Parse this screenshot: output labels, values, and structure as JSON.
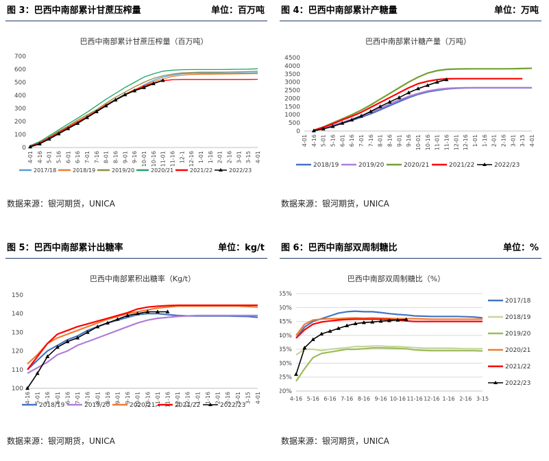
{
  "panels": [
    {
      "header": {
        "title": "图 3：巴西中南部累计甘蔗压榨量",
        "unit": "单位：百万吨"
      },
      "source": "数据来源：银河期货，UNICA"
    },
    {
      "header": {
        "title": "图 4：巴西中南部累计产糖量",
        "unit": "单位：万吨"
      },
      "source": "数据来源：银河期货，UNICA"
    },
    {
      "header": {
        "title": "图 5：巴西中南部累计出糖率",
        "unit": "单位：kg/t"
      },
      "source": "数据来源：银河期货，UNICA"
    },
    {
      "header": {
        "title": "图 6：巴西中南部双周制糖比",
        "unit": "单位：%"
      },
      "source": "数据来源：银河期货，UNICA"
    }
  ],
  "chart_data": [
    {
      "type": "line",
      "title": "巴西中南部累计甘蔗压榨量（百万吨）",
      "xlabel": "",
      "ylabel": "",
      "categories": [
        "4-01",
        "4-16",
        "5-01",
        "5-16",
        "6-01",
        "6-16",
        "7-01",
        "7-16",
        "8-01",
        "8-16",
        "9-01",
        "9-16",
        "10-01",
        "10-16",
        "11-01",
        "11-16",
        "12-1",
        "12-16",
        "1-01",
        "1-16",
        "2-01",
        "2-16",
        "3-01",
        "3-15",
        "4-01"
      ],
      "ylim": [
        0,
        700
      ],
      "yticks": [
        0,
        100,
        200,
        300,
        400,
        500,
        600,
        700
      ],
      "ytick_labels": [
        "0",
        "100",
        "200",
        "300",
        "400",
        "500",
        "600",
        "700"
      ],
      "legend": "bottom",
      "series": [
        {
          "name": "2017/18",
          "color": "#5b9bd5",
          "marker": false,
          "values": [
            8,
            30,
            70,
            110,
            150,
            190,
            235,
            280,
            320,
            360,
            400,
            440,
            480,
            515,
            540,
            555,
            565,
            568,
            570,
            570,
            570,
            570,
            571,
            572,
            574
          ]
        },
        {
          "name": "2018/19",
          "color": "#ed7d31",
          "marker": false,
          "values": [
            10,
            35,
            75,
            120,
            160,
            200,
            240,
            285,
            330,
            370,
            410,
            445,
            475,
            505,
            525,
            545,
            555,
            560,
            562,
            562,
            563,
            564,
            565,
            566,
            567
          ]
        },
        {
          "name": "2019/20",
          "color": "#8c8c40",
          "marker": false,
          "values": [
            10,
            38,
            80,
            125,
            165,
            210,
            250,
            290,
            340,
            385,
            425,
            465,
            500,
            530,
            550,
            563,
            572,
            576,
            578,
            578,
            578,
            579,
            580,
            582,
            585
          ]
        },
        {
          "name": "2020/21",
          "color": "#21a366",
          "marker": false,
          "values": [
            15,
            45,
            90,
            135,
            180,
            225,
            270,
            320,
            370,
            415,
            460,
            500,
            540,
            565,
            585,
            593,
            597,
            598,
            598,
            598,
            598,
            599,
            600,
            601,
            604
          ]
        },
        {
          "name": "2021/22",
          "color": "#ff0000",
          "marker": false,
          "values": [
            10,
            35,
            75,
            115,
            155,
            195,
            235,
            280,
            325,
            365,
            405,
            440,
            470,
            495,
            512,
            520,
            522,
            522,
            522,
            522,
            522,
            522,
            522,
            522,
            523
          ]
        },
        {
          "name": "2022/23",
          "color": "#000000",
          "marker": true,
          "values": [
            5,
            28,
            65,
            105,
            145,
            185,
            230,
            275,
            320,
            365,
            405,
            435,
            460,
            490,
            515,
            null,
            null,
            null,
            null,
            null,
            null,
            null,
            null,
            null,
            null
          ]
        }
      ]
    },
    {
      "type": "line",
      "title": "巴西中南部累计糖产量（万吨）",
      "xlabel": "",
      "ylabel": "",
      "categories": [
        "4-01",
        "4-16",
        "5-01",
        "5-16",
        "6-01",
        "6-16",
        "7-01",
        "7-16",
        "8-01",
        "8-16",
        "9-01",
        "9-16",
        "10-01",
        "10-16",
        "11-01",
        "11-16",
        "12-01",
        "12-16",
        "1-01",
        "1-16",
        "2-01",
        "2-16",
        "3-01",
        "3-15",
        "4-01"
      ],
      "ylim": [
        0,
        4500
      ],
      "yticks": [
        0,
        500,
        1000,
        1500,
        2000,
        2500,
        3000,
        3500,
        4000,
        4500
      ],
      "ytick_labels": [
        "0",
        "500",
        "1000",
        "1500",
        "2000",
        "2500",
        "3000",
        "3500",
        "4000",
        "4500"
      ],
      "legend": "bottom",
      "series": [
        {
          "name": "2018/19",
          "color": "#4472c4",
          "marker": false,
          "values": [
            null,
            20,
            150,
            300,
            480,
            650,
            850,
            1050,
            1300,
            1550,
            1800,
            2050,
            2250,
            2400,
            2500,
            2580,
            2620,
            2640,
            2650,
            2650,
            2650,
            2650,
            2650,
            2650,
            2650
          ]
        },
        {
          "name": "2019/20",
          "color": "#b07cd8",
          "marker": false,
          "values": [
            null,
            30,
            180,
            350,
            530,
            720,
            930,
            1150,
            1400,
            1650,
            1900,
            2120,
            2300,
            2450,
            2550,
            2610,
            2640,
            2655,
            2660,
            2660,
            2660,
            2660,
            2660,
            2660,
            2660
          ]
        },
        {
          "name": "2020/21",
          "color": "#70a030",
          "marker": false,
          "values": [
            null,
            50,
            250,
            500,
            750,
            1000,
            1280,
            1600,
            1950,
            2300,
            2650,
            3000,
            3300,
            3550,
            3700,
            3780,
            3800,
            3810,
            3815,
            3815,
            3815,
            3815,
            3820,
            3830,
            3850
          ]
        },
        {
          "name": "2021/22",
          "color": "#ff0000",
          "marker": false,
          "values": [
            null,
            40,
            230,
            450,
            680,
            900,
            1150,
            1450,
            1750,
            2050,
            2350,
            2650,
            2900,
            3050,
            3150,
            3200,
            3210,
            3210,
            3210,
            3210,
            3210,
            3210,
            3210,
            3210,
            null
          ]
        },
        {
          "name": "2022/23",
          "color": "#000000",
          "marker": true,
          "values": [
            null,
            20,
            130,
            280,
            480,
            680,
            920,
            1200,
            1500,
            1780,
            2050,
            2350,
            2600,
            2800,
            3000,
            3150,
            null,
            null,
            null,
            null,
            null,
            null,
            null,
            null,
            null
          ]
        }
      ]
    },
    {
      "type": "line",
      "title": "巴西中南部累积出糖率（Kg/t）",
      "xlabel": "",
      "ylabel": "",
      "categories": [
        "4-16",
        "5-01",
        "5-16",
        "6-01",
        "6-16",
        "7-01",
        "7-16",
        "8-01",
        "8-16",
        "9-01",
        "9-16",
        "10-01",
        "10-16",
        "11-01",
        "11-16",
        "12-01",
        "12-16",
        "1-01",
        "1-16",
        "2-01",
        "2-16",
        "3-01",
        "3-15",
        "4-01"
      ],
      "ylim": [
        100,
        150
      ],
      "yticks": [
        100,
        110,
        120,
        130,
        140,
        150
      ],
      "ytick_labels": [
        "100",
        "110",
        "120",
        "130",
        "140",
        "150"
      ],
      "legend": "bottom",
      "series": [
        {
          "name": "2018/19",
          "color": "#4472c4",
          "marker": false,
          "values": [
            110,
            115,
            120,
            123,
            126,
            128,
            131,
            133,
            135,
            136.5,
            138,
            139.5,
            140,
            140,
            139.5,
            139,
            138.8,
            138.7,
            138.7,
            138.7,
            138.7,
            138.6,
            138.5,
            138
          ]
        },
        {
          "name": "2019/20",
          "color": "#b07cd8",
          "marker": false,
          "values": [
            108,
            111,
            114,
            118,
            120,
            123,
            125,
            127,
            129,
            131,
            133,
            135,
            136.5,
            137.5,
            138,
            138.5,
            138.8,
            139,
            139,
            139,
            139,
            139,
            139,
            139
          ]
        },
        {
          "name": "2020/21",
          "color": "#ed7d31",
          "marker": false,
          "values": [
            113,
            118,
            124,
            127,
            129,
            131,
            133,
            135,
            137,
            138.5,
            140,
            141,
            142,
            143,
            143.5,
            144,
            144,
            144,
            144,
            144,
            144,
            144,
            143.8,
            143.5
          ]
        },
        {
          "name": "2021/22",
          "color": "#ff0000",
          "marker": false,
          "values": [
            110,
            117,
            124,
            129,
            131,
            133,
            134.5,
            136,
            137.5,
            139,
            140.5,
            142.5,
            143.5,
            144,
            144.3,
            144.5,
            144.5,
            144.5,
            144.5,
            144.5,
            144.5,
            144.5,
            144.5,
            144.5
          ]
        },
        {
          "name": "2022/23",
          "color": "#000000",
          "marker": true,
          "values": [
            100,
            108,
            117,
            122,
            125,
            127,
            130,
            133,
            135,
            137,
            139,
            140,
            141,
            141,
            141,
            null,
            null,
            null,
            null,
            null,
            null,
            null,
            null,
            null
          ]
        }
      ]
    },
    {
      "type": "line",
      "title": "巴西中南部双周制糖比（%）",
      "xlabel": "",
      "ylabel": "",
      "categories": [
        "4-16",
        "5-01",
        "5-16",
        "6-01",
        "6-16",
        "7-01",
        "7-16",
        "8-01",
        "8-16",
        "9-01",
        "9-16",
        "10-01",
        "10-16",
        "11-01",
        "11-16",
        "12-01",
        "12-16",
        "1-01",
        "1-16",
        "2-01",
        "2-16",
        "3-01",
        "3-15"
      ],
      "x_tick_labels": [
        "4-16",
        "5-16",
        "6-16",
        "7-16",
        "8-16",
        "9-16",
        "10-16",
        "11-16",
        "12-16",
        "1-16",
        "2-16",
        "3-15"
      ],
      "ylim": [
        20,
        55
      ],
      "yticks": [
        20,
        25,
        30,
        35,
        40,
        45,
        50,
        55
      ],
      "ytick_labels": [
        "20%",
        "25%",
        "30%",
        "35%",
        "40%",
        "45%",
        "50%",
        "55%"
      ],
      "legend": "right",
      "series": [
        {
          "name": "2017/18",
          "color": "#4472c4",
          "marker": false,
          "values": [
            39,
            43,
            45,
            46,
            47,
            48,
            48.5,
            48.7,
            48.5,
            48.5,
            48.2,
            47.8,
            47.5,
            47.3,
            47,
            46.9,
            46.8,
            46.8,
            46.8,
            46.8,
            46.7,
            46.6,
            46.3
          ]
        },
        {
          "name": "2018/19",
          "color": "#c5d69b",
          "marker": false,
          "values": [
            33,
            35,
            35,
            34.5,
            35,
            35.3,
            35.6,
            36,
            36,
            36.2,
            36.2,
            36,
            36,
            35.8,
            35.6,
            35.4,
            35.4,
            35.4,
            35.4,
            35.3,
            35.2,
            35.2,
            35.2
          ]
        },
        {
          "name": "2019/20",
          "color": "#9bbb59",
          "marker": false,
          "values": [
            23.5,
            28,
            32,
            33.5,
            34,
            34.5,
            35,
            35,
            35.2,
            35.5,
            35.5,
            35.4,
            35.3,
            35.2,
            34.8,
            34.6,
            34.5,
            34.5,
            34.5,
            34.5,
            34.5,
            34.5,
            34.4
          ]
        },
        {
          "name": "2020/21",
          "color": "#ed7d31",
          "marker": false,
          "values": [
            40,
            44,
            45.5,
            45.8,
            46,
            46,
            46.2,
            46.3,
            46.2,
            46.3,
            46.2,
            46.1,
            46,
            46,
            46,
            45.9,
            45.8,
            45.8,
            45.8,
            45.8,
            45.8,
            45.8,
            45.8
          ]
        },
        {
          "name": "2021/22",
          "color": "#ff0000",
          "marker": false,
          "values": [
            39,
            42,
            44,
            44.8,
            45.2,
            45.5,
            45.7,
            45.8,
            45.8,
            45.8,
            45.8,
            45.7,
            45.5,
            45.2,
            45,
            45,
            45,
            45,
            45,
            45,
            45,
            45,
            45
          ]
        },
        {
          "name": "2022/23",
          "color": "#000000",
          "marker": true,
          "values": [
            26,
            35.5,
            38.5,
            40.5,
            41.5,
            42.5,
            43.5,
            44.2,
            44.6,
            44.8,
            45.1,
            45.3,
            45.5,
            45.7,
            null,
            null,
            null,
            null,
            null,
            null,
            null,
            null,
            null
          ]
        }
      ]
    }
  ]
}
